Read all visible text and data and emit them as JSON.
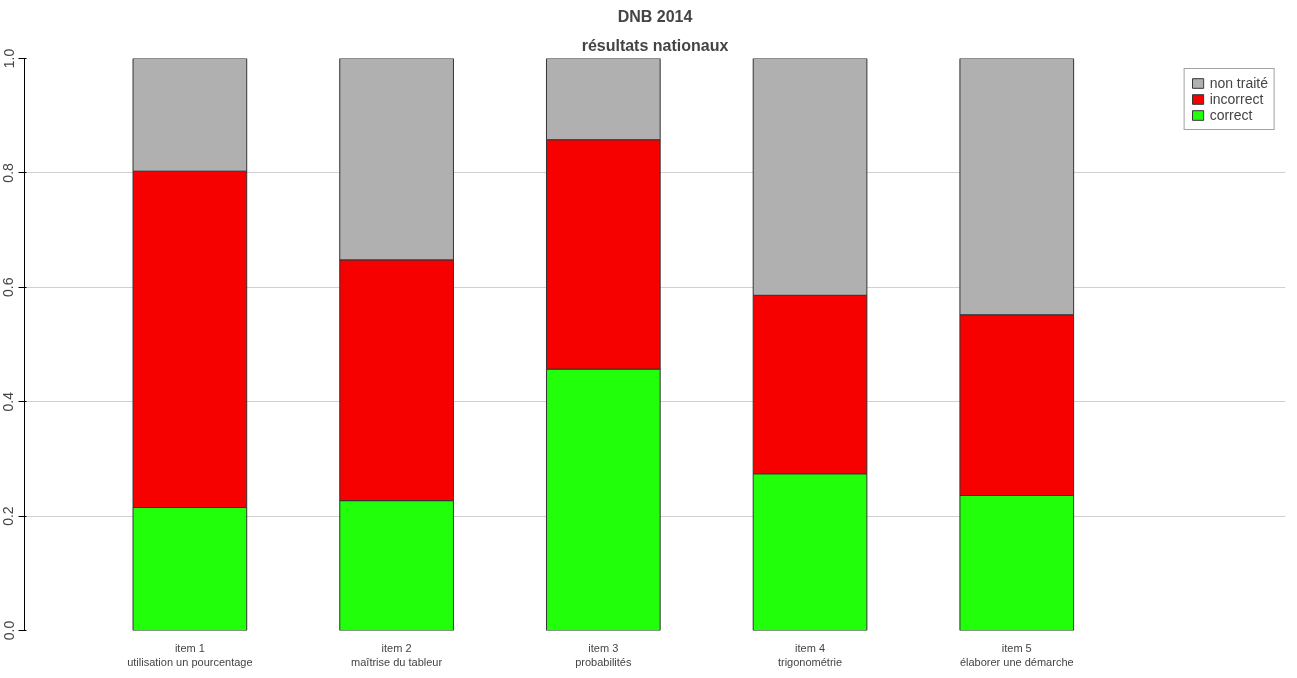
{
  "chart_data": {
    "type": "bar",
    "title": "DNB 2014",
    "subtitle": "résultats nationaux",
    "categories": [
      "item 1\nutilisation un pourcentage",
      "item 2\nmaîtrise du tableur",
      "item 3\nprobabilités",
      "item 4\ntrigonométrie",
      "item 5\nélaborer une démarche"
    ],
    "stacked": true,
    "series": [
      {
        "name": "correct",
        "color": "#22ff0a",
        "values": [
          0.215,
          0.227,
          0.457,
          0.274,
          0.236
        ]
      },
      {
        "name": "incorrect",
        "color": "#f70000",
        "values": [
          0.588,
          0.421,
          0.401,
          0.312,
          0.316
        ]
      },
      {
        "name": "non traité",
        "color": "#b0b0b0",
        "values": [
          0.197,
          0.352,
          0.142,
          0.414,
          0.448
        ]
      }
    ],
    "ylim": [
      0,
      1
    ],
    "yticks": [
      {
        "value": 0,
        "label": "0.0"
      },
      0.2,
      0.4,
      0.6,
      0.8,
      {
        "value": 1,
        "label": "1.0"
      }
    ],
    "grid": "y",
    "legend": "top right"
  }
}
